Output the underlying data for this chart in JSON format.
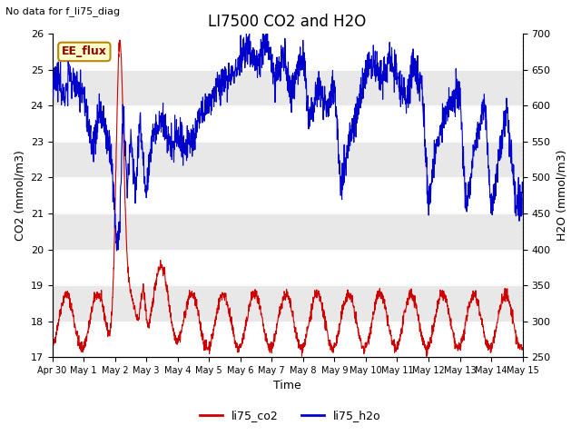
{
  "title": "LI7500 CO2 and H2O",
  "subtitle": "No data for f_li75_diag",
  "xlabel": "Time",
  "ylabel_left": "CO2 (mmol/m3)",
  "ylabel_right": "H2O (mmol/m3)",
  "ylim_left": [
    17.0,
    26.0
  ],
  "ylim_right": [
    250,
    700
  ],
  "yticks_left": [
    17.0,
    18.0,
    19.0,
    20.0,
    21.0,
    22.0,
    23.0,
    24.0,
    25.0,
    26.0
  ],
  "yticks_right": [
    250,
    300,
    350,
    400,
    450,
    500,
    550,
    600,
    650,
    700
  ],
  "xtick_labels": [
    "Apr 30",
    "May 1",
    "May 2",
    "May 3",
    "May 4",
    "May 5",
    "May 6",
    "May 7",
    "May 8",
    "May 9",
    "May 10",
    "May 11",
    "May 12",
    "May 13",
    "May 14",
    "May 15"
  ],
  "xtick_positions": [
    0,
    1,
    2,
    3,
    4,
    5,
    6,
    7,
    8,
    9,
    10,
    11,
    12,
    13,
    14,
    15
  ],
  "annotation_text": "EE_flux",
  "annotation_facecolor": "#ffffcc",
  "annotation_edgecolor": "#b8860b",
  "bg_band_color": "#e8e8e8",
  "co2_color": "#cc0000",
  "h2o_color": "#0000cc",
  "legend_co2": "li75_co2",
  "legend_h2o": "li75_h2o",
  "title_fontsize": 12,
  "label_fontsize": 9,
  "tick_fontsize": 8,
  "legend_fontsize": 9,
  "subtitle_fontsize": 8,
  "xlim": [
    0,
    15
  ]
}
